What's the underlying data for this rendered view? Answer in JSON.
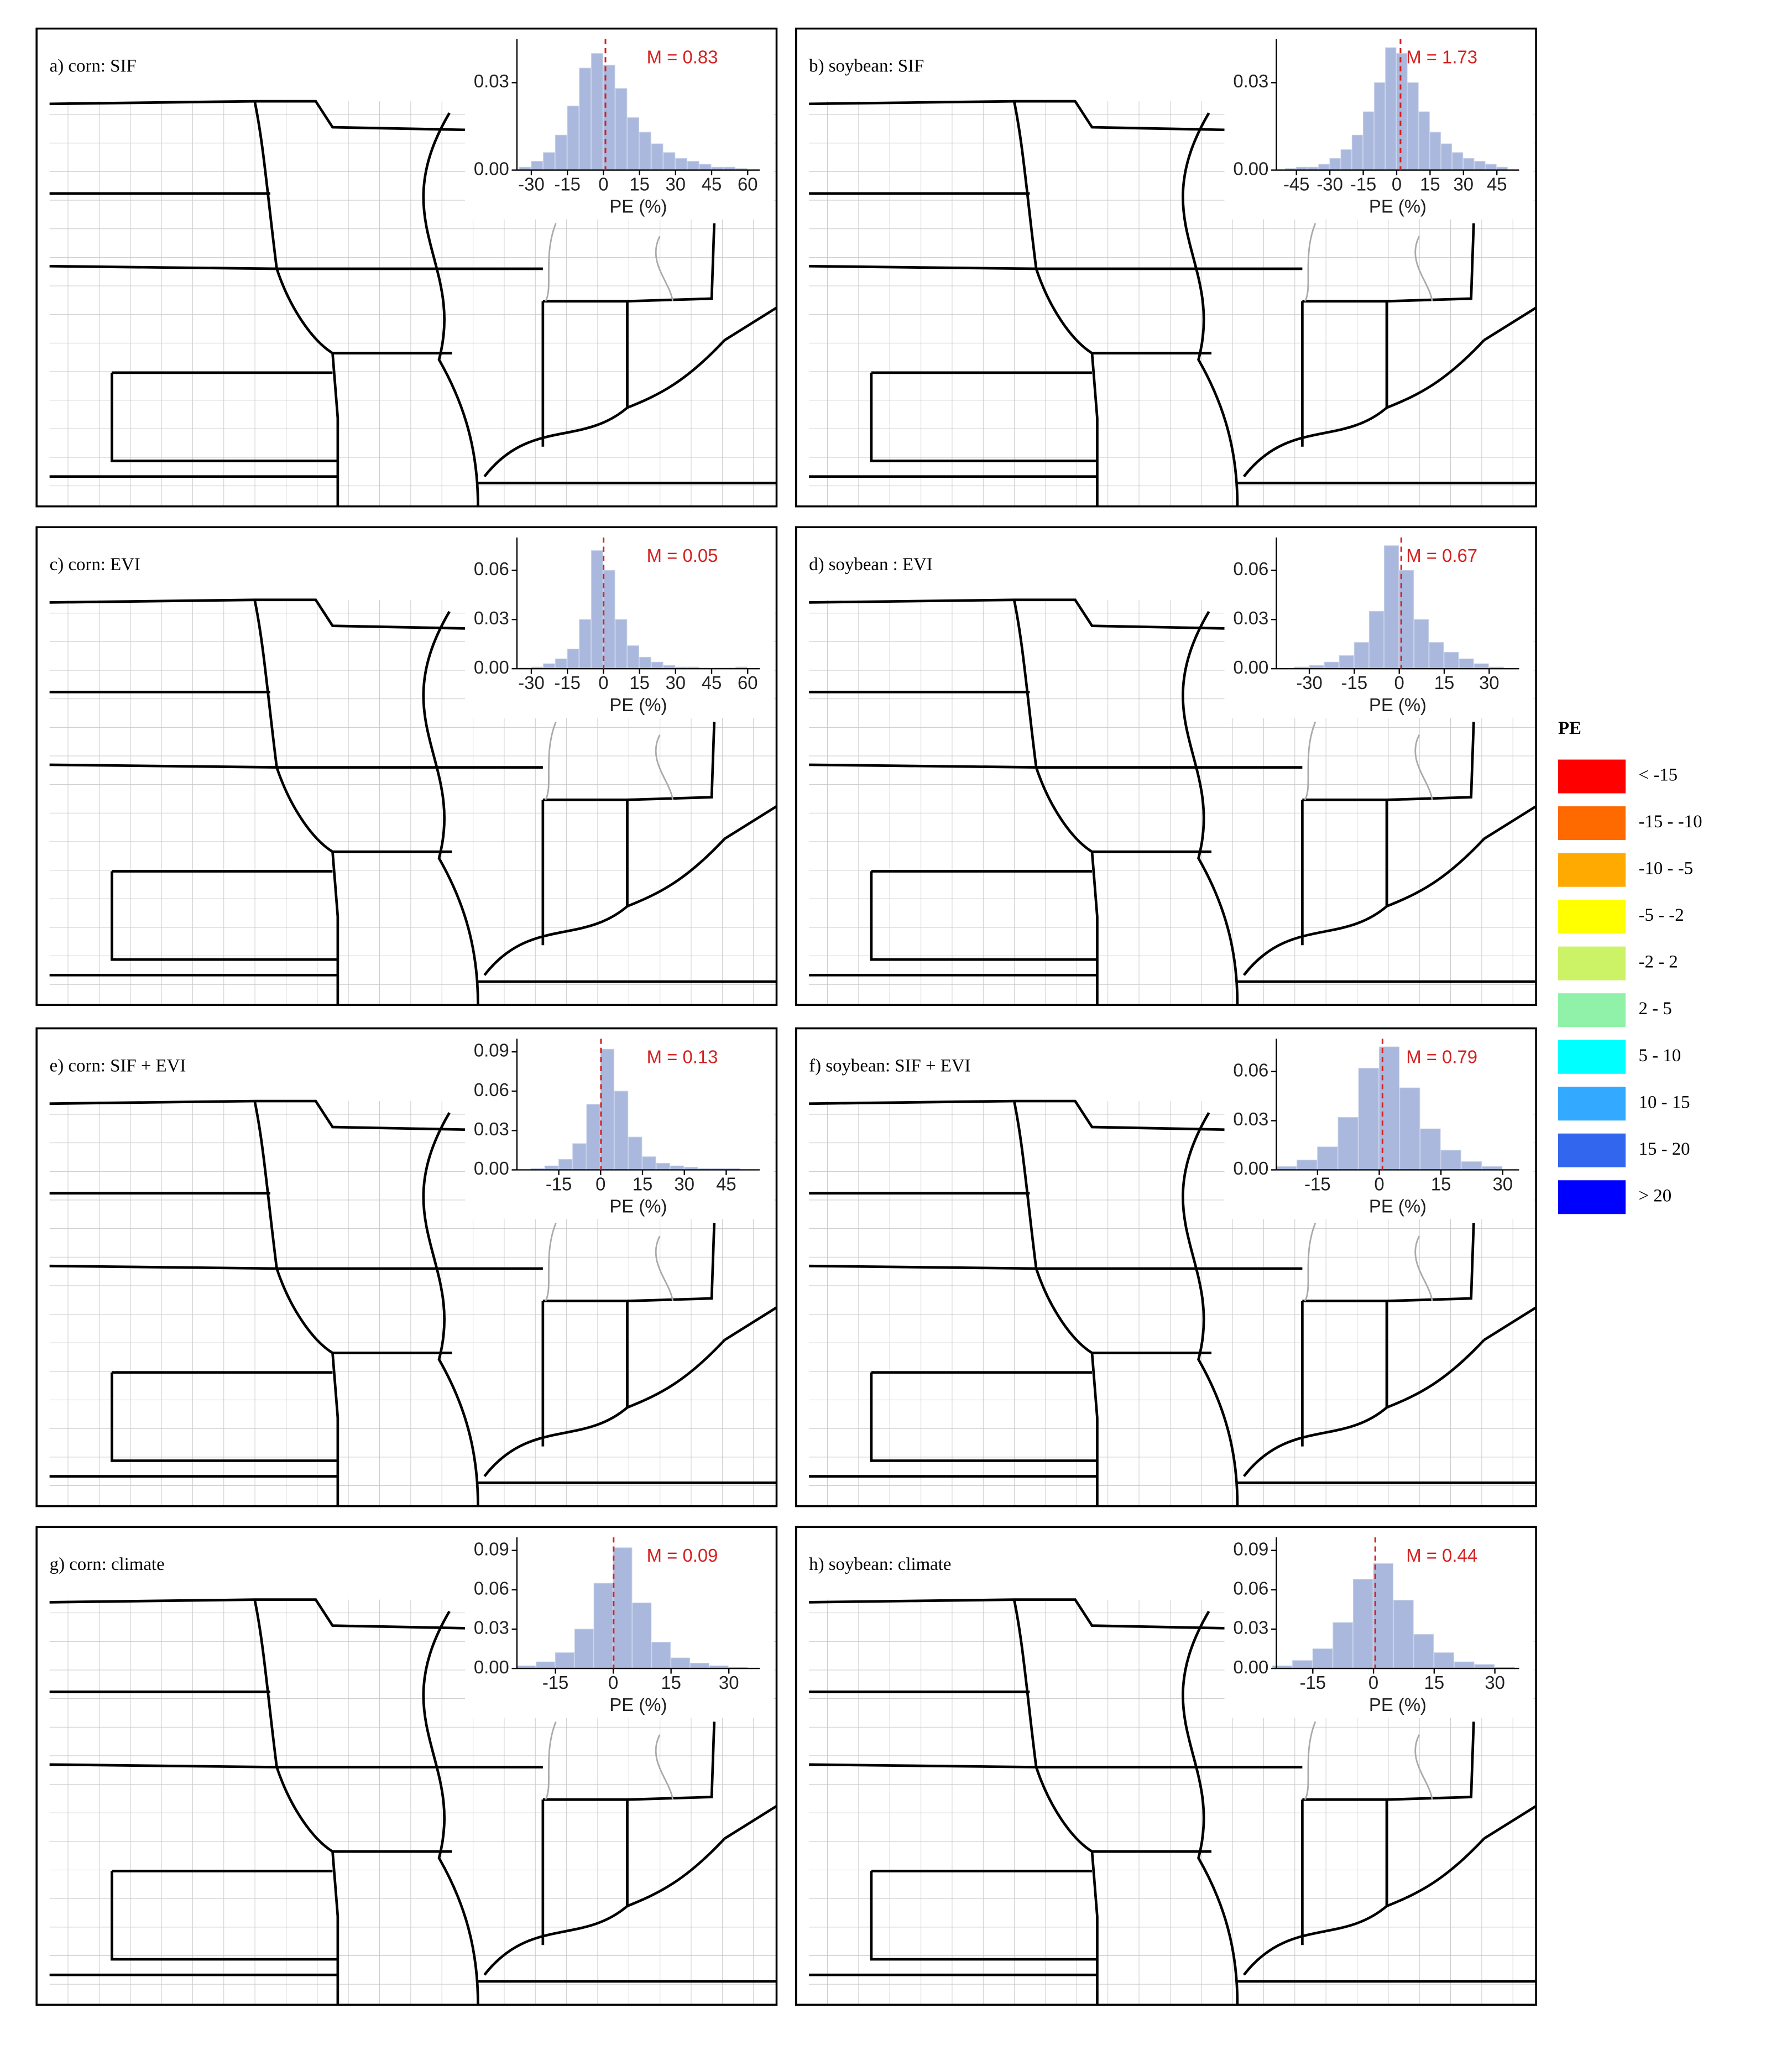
{
  "chart_data": [
    {
      "type": "histogram",
      "title": "a) corn: SIF",
      "mean": 0.83,
      "mean_label": "M = 0.83",
      "xlabel": "PE (%)",
      "bins": [
        -35,
        -30,
        -25,
        -20,
        -15,
        -10,
        -5,
        0,
        5,
        10,
        15,
        20,
        25,
        30,
        35,
        40,
        45,
        50,
        55,
        60
      ],
      "values": [
        0.001,
        0.003,
        0.006,
        0.012,
        0.022,
        0.035,
        0.04,
        0.036,
        0.028,
        0.018,
        0.013,
        0.009,
        0.006,
        0.004,
        0.003,
        0.002,
        0.001,
        0.001,
        0.0005
      ],
      "xlim": [
        -36,
        65
      ],
      "ylim": [
        0,
        0.045
      ],
      "xticks": [
        -30,
        -15,
        0,
        15,
        30,
        45,
        60
      ],
      "yticks": [
        {
          "value": 0,
          "label": "0.00"
        },
        {
          "value": 0.03,
          "label": "0.03"
        }
      ]
    },
    {
      "type": "histogram",
      "title": "b) soybean: SIF",
      "mean": 1.73,
      "mean_label": "M = 1.73",
      "xlabel": "PE (%)",
      "bins": [
        -50,
        -45,
        -40,
        -35,
        -30,
        -25,
        -20,
        -15,
        -10,
        -5,
        0,
        5,
        10,
        15,
        20,
        25,
        30,
        35,
        40,
        45,
        50
      ],
      "values": [
        0.0005,
        0.001,
        0.001,
        0.002,
        0.004,
        0.007,
        0.012,
        0.02,
        0.03,
        0.042,
        0.04,
        0.03,
        0.02,
        0.013,
        0.009,
        0.006,
        0.004,
        0.003,
        0.002,
        0.001
      ],
      "xlim": [
        -54,
        55
      ],
      "ylim": [
        0,
        0.045
      ],
      "xticks": [
        -45,
        -30,
        -15,
        0,
        15,
        30,
        45
      ],
      "yticks": [
        {
          "value": 0,
          "label": "0.00"
        },
        {
          "value": 0.03,
          "label": "0.03"
        }
      ]
    },
    {
      "type": "histogram",
      "title": "c) corn: EVI",
      "mean": 0.05,
      "mean_label": "M = 0.05",
      "xlabel": "PE (%)",
      "bins": [
        -35,
        -30,
        -25,
        -20,
        -15,
        -10,
        -5,
        0,
        5,
        10,
        15,
        20,
        25,
        30,
        35,
        40,
        45,
        50,
        55,
        60
      ],
      "values": [
        0.0005,
        0.001,
        0.003,
        0.006,
        0.012,
        0.03,
        0.072,
        0.06,
        0.03,
        0.014,
        0.007,
        0.004,
        0.002,
        0.001,
        0.001,
        0.0005,
        0.0005,
        0.0005,
        0.001
      ],
      "xlim": [
        -36,
        65
      ],
      "ylim": [
        0,
        0.08
      ],
      "xticks": [
        -30,
        -15,
        0,
        15,
        30,
        45,
        60
      ],
      "yticks": [
        {
          "value": 0,
          "label": "0.00"
        },
        {
          "value": 0.03,
          "label": "0.03"
        },
        {
          "value": 0.06,
          "label": "0.06"
        }
      ]
    },
    {
      "type": "histogram",
      "title": "d) soybean : EVI",
      "mean": 0.67,
      "mean_label": "M = 0.67",
      "xlabel": "PE (%)",
      "bins": [
        -35,
        -30,
        -25,
        -20,
        -15,
        -10,
        -5,
        0,
        5,
        10,
        15,
        20,
        25,
        30,
        35
      ],
      "values": [
        0.001,
        0.002,
        0.004,
        0.008,
        0.016,
        0.035,
        0.075,
        0.06,
        0.03,
        0.016,
        0.01,
        0.006,
        0.003,
        0.001
      ],
      "xlim": [
        -41,
        40
      ],
      "ylim": [
        0,
        0.08
      ],
      "xticks": [
        -30,
        -15,
        0,
        15,
        30
      ],
      "yticks": [
        {
          "value": 0,
          "label": "0.00"
        },
        {
          "value": 0.03,
          "label": "0.03"
        },
        {
          "value": 0.06,
          "label": "0.06"
        }
      ]
    },
    {
      "type": "histogram",
      "title": "e) corn: SIF + EVI",
      "mean": 0.13,
      "mean_label": "M = 0.13",
      "xlabel": "PE (%)",
      "bins": [
        -25,
        -20,
        -15,
        -10,
        -5,
        0,
        5,
        10,
        15,
        20,
        25,
        30,
        35,
        40,
        45,
        50
      ],
      "values": [
        0.001,
        0.003,
        0.008,
        0.02,
        0.05,
        0.092,
        0.06,
        0.025,
        0.01,
        0.005,
        0.003,
        0.002,
        0.001,
        0.001,
        0.001
      ],
      "xlim": [
        -30,
        57
      ],
      "ylim": [
        0,
        0.1
      ],
      "xticks": [
        -15,
        0,
        15,
        30,
        45
      ],
      "yticks": [
        {
          "value": 0,
          "label": "0.00"
        },
        {
          "value": 0.03,
          "label": "0.03"
        },
        {
          "value": 0.06,
          "label": "0.06"
        },
        {
          "value": 0.09,
          "label": "0.09"
        }
      ]
    },
    {
      "type": "histogram",
      "title": "f) soybean: SIF + EVI",
      "mean": 0.79,
      "mean_label": "M = 0.79",
      "xlabel": "PE (%)",
      "bins": [
        -25,
        -20,
        -15,
        -10,
        -5,
        0,
        5,
        10,
        15,
        20,
        25,
        30
      ],
      "values": [
        0.002,
        0.006,
        0.014,
        0.032,
        0.062,
        0.075,
        0.05,
        0.025,
        0.012,
        0.005,
        0.002
      ],
      "xlim": [
        -25,
        34
      ],
      "ylim": [
        0,
        0.08
      ],
      "xticks": [
        -15,
        0,
        15,
        30
      ],
      "yticks": [
        {
          "value": 0,
          "label": "0.00"
        },
        {
          "value": 0.03,
          "label": "0.03"
        },
        {
          "value": 0.06,
          "label": "0.06"
        }
      ]
    },
    {
      "type": "histogram",
      "title": "g) corn: climate",
      "mean": 0.09,
      "mean_label": "M = 0.09",
      "xlabel": "PE (%)",
      "bins": [
        -25,
        -20,
        -15,
        -10,
        -5,
        0,
        5,
        10,
        15,
        20,
        25,
        30,
        35
      ],
      "values": [
        0.002,
        0.005,
        0.012,
        0.03,
        0.065,
        0.092,
        0.05,
        0.02,
        0.008,
        0.004,
        0.002,
        0.001
      ],
      "xlim": [
        -25,
        38
      ],
      "ylim": [
        0,
        0.1
      ],
      "xticks": [
        -15,
        0,
        15,
        30
      ],
      "yticks": [
        {
          "value": 0,
          "label": "0.00"
        },
        {
          "value": 0.03,
          "label": "0.03"
        },
        {
          "value": 0.06,
          "label": "0.06"
        },
        {
          "value": 0.09,
          "label": "0.09"
        }
      ]
    },
    {
      "type": "histogram",
      "title": "h) soybean: climate",
      "mean": 0.44,
      "mean_label": "M = 0.44",
      "xlabel": "PE (%)",
      "bins": [
        -25,
        -20,
        -15,
        -10,
        -5,
        0,
        5,
        10,
        15,
        20,
        25,
        30,
        35
      ],
      "values": [
        0.002,
        0.006,
        0.015,
        0.035,
        0.068,
        0.08,
        0.052,
        0.026,
        0.012,
        0.005,
        0.003,
        0.001
      ],
      "xlim": [
        -24,
        36
      ],
      "ylim": [
        0,
        0.1
      ],
      "xticks": [
        -15,
        0,
        15,
        30
      ],
      "yticks": [
        {
          "value": 0,
          "label": "0.00"
        },
        {
          "value": 0.03,
          "label": "0.03"
        },
        {
          "value": 0.06,
          "label": "0.06"
        },
        {
          "value": 0.09,
          "label": "0.09"
        }
      ]
    }
  ],
  "legend": {
    "title": "PE",
    "items": [
      {
        "label": "< -15",
        "color": "#ff0000"
      },
      {
        "label": "-15 - -10",
        "color": "#ff6a00"
      },
      {
        "label": "-10 - -5",
        "color": "#ffaa00"
      },
      {
        "label": "-5 - -2",
        "color": "#ffff00"
      },
      {
        "label": "-2 - 2",
        "color": "#ccf266"
      },
      {
        "label": "2 - 5",
        "color": "#90f2a8"
      },
      {
        "label": "5 - 10",
        "color": "#00ffff"
      },
      {
        "label": "10 - 15",
        "color": "#33aaff"
      },
      {
        "label": "15 - 20",
        "color": "#3366ee"
      },
      {
        "label": "> 20",
        "color": "#0000ff"
      }
    ]
  }
}
